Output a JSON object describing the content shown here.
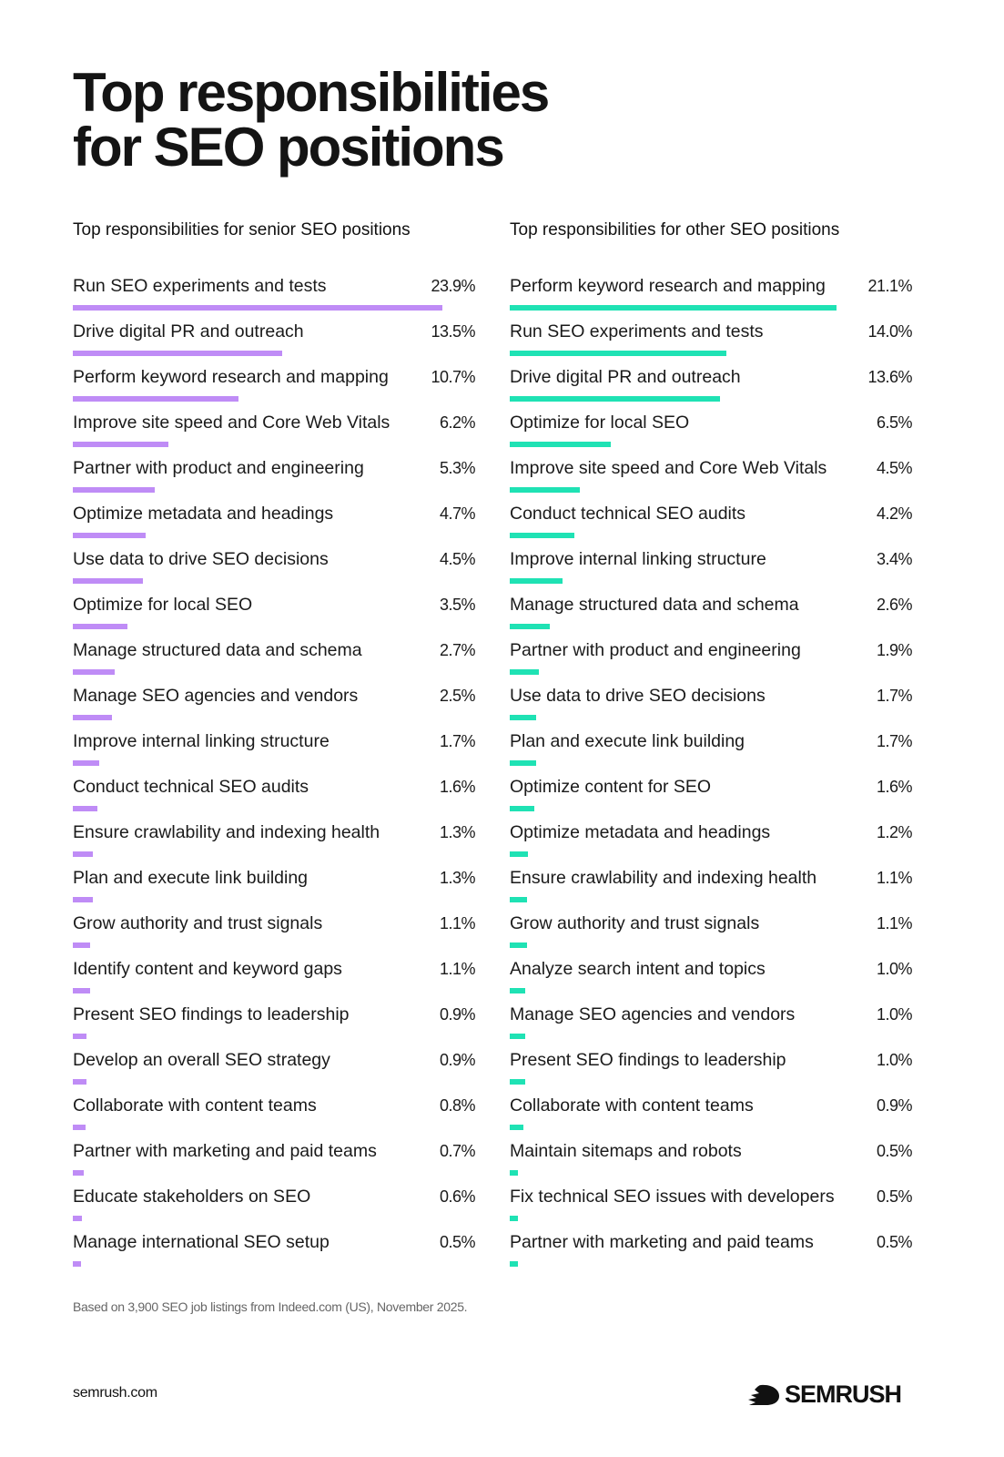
{
  "title_line1": "Top responsibilities",
  "title_line2": "for SEO positions",
  "footnote": "Based on 3,900 SEO job listings from Indeed.com (US), November 2025.",
  "site": "semrush.com",
  "brand": "SEMRUSH",
  "chart_data": [
    {
      "type": "bar",
      "orientation": "horizontal",
      "title": "Top responsibilities for senior SEO positions",
      "color": "#bf8cf6",
      "unit": "%",
      "categories": [
        "Run SEO experiments and tests",
        "Drive digital PR and outreach",
        "Perform keyword research and mapping",
        "Improve site speed and Core Web Vitals",
        "Partner with product and engineering",
        "Optimize metadata and headings",
        "Use data to drive SEO decisions",
        "Optimize for local SEO",
        "Manage structured data and schema",
        "Manage SEO agencies and vendors",
        "Improve internal linking structure",
        "Conduct technical SEO audits",
        "Ensure crawlability and indexing health",
        "Plan and execute link building",
        "Grow authority and trust signals",
        "Identify content and keyword gaps",
        "Present SEO findings to leadership",
        "Develop an overall SEO strategy",
        "Collaborate with content teams",
        "Partner with marketing and paid teams",
        "Educate stakeholders on SEO",
        "Manage international SEO setup"
      ],
      "values": [
        23.9,
        13.5,
        10.7,
        6.2,
        5.3,
        4.7,
        4.5,
        3.5,
        2.7,
        2.5,
        1.7,
        1.6,
        1.3,
        1.3,
        1.1,
        1.1,
        0.9,
        0.9,
        0.8,
        0.7,
        0.6,
        0.5
      ],
      "labels": [
        "23.9%",
        "13.5%",
        "10.7%",
        "6.2%",
        "5.3%",
        "4.7%",
        "4.5%",
        "3.5%",
        "2.7%",
        "2.5%",
        "1.7%",
        "1.6%",
        "1.3%",
        "1.3%",
        "1.1%",
        "1.1%",
        "0.9%",
        "0.9%",
        "0.8%",
        "0.7%",
        "0.6%",
        "0.5%"
      ]
    },
    {
      "type": "bar",
      "orientation": "horizontal",
      "title": "Top responsibilities for other SEO positions",
      "color": "#1fe2b4",
      "unit": "%",
      "categories": [
        "Perform keyword research and mapping",
        "Run SEO experiments and tests",
        "Drive digital PR and outreach",
        "Optimize for local SEO",
        "Improve site speed and Core Web Vitals",
        "Conduct technical SEO audits",
        "Improve internal linking structure",
        "Manage structured data and schema",
        "Partner with product and engineering",
        "Use data to drive SEO decisions",
        "Plan and execute link building",
        "Optimize content for SEO",
        "Optimize metadata and headings",
        "Ensure crawlability and indexing health",
        "Grow authority and trust signals",
        "Analyze search intent and topics",
        "Manage SEO agencies and vendors",
        "Present SEO findings to leadership",
        "Collaborate with content teams",
        "Maintain sitemaps and robots",
        "Fix technical SEO issues with developers",
        "Partner with marketing and paid teams"
      ],
      "values": [
        21.1,
        14.0,
        13.6,
        6.5,
        4.5,
        4.2,
        3.4,
        2.6,
        1.9,
        1.7,
        1.7,
        1.6,
        1.2,
        1.1,
        1.1,
        1.0,
        1.0,
        1.0,
        0.9,
        0.5,
        0.5,
        0.5
      ],
      "labels": [
        "21.1%",
        "14.0%",
        "13.6%",
        "6.5%",
        "4.5%",
        "4.2%",
        "3.4%",
        "2.6%",
        "1.9%",
        "1.7%",
        "1.7%",
        "1.6%",
        "1.2%",
        "1.1%",
        "1.1%",
        "1.0%",
        "1.0%",
        "1.0%",
        "0.9%",
        "0.5%",
        "0.5%",
        "0.5%"
      ]
    }
  ]
}
